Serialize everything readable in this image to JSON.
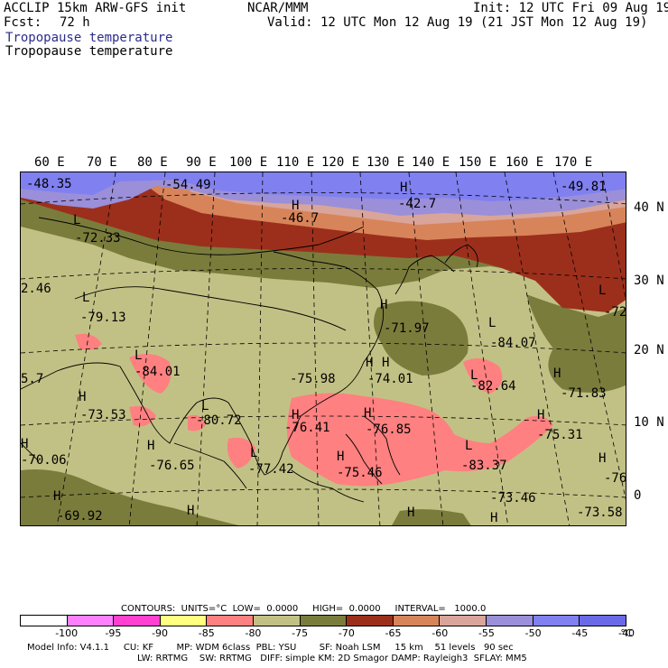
{
  "header": {
    "model": "ACCLIP 15km ARW-GFS init",
    "center": "NCAR/MMM",
    "init": "Init: 12 UTC Fri 09 Aug 19",
    "fcst_label": "Fcst:",
    "fcst_value": "72 h",
    "valid": "Valid: 12 UTC Mon 12 Aug 19 (21 JST Mon 12 Aug 19)",
    "field_title_1": "Tropopause temperature",
    "field_title_2": "Tropopause temperature"
  },
  "map": {
    "projection": "lambert-conformal",
    "longitude_labels": [
      "60 E",
      "70 E",
      "80 E",
      "90 E",
      "100 E",
      "110 E",
      "120 E",
      "130 E",
      "140 E",
      "150 E",
      "160 E",
      "170 E"
    ],
    "latitude_labels": [
      "40 N",
      "30 N",
      "20 N",
      "10 N",
      "0"
    ],
    "field_labels": [
      {
        "text": "-48.35"
      },
      {
        "text": "-54.49"
      },
      {
        "text": "H"
      },
      {
        "text": "-42.7"
      },
      {
        "text": "H"
      },
      {
        "text": "-46.7"
      },
      {
        "text": "-49.81"
      },
      {
        "text": "L"
      },
      {
        "text": "-72.33"
      },
      {
        "text": "2.46"
      },
      {
        "text": "L"
      },
      {
        "text": "-79.13"
      },
      {
        "text": "H"
      },
      {
        "text": "-71.97"
      },
      {
        "text": "L"
      },
      {
        "text": "-84.07"
      },
      {
        "text": "L"
      },
      {
        "text": "-72."
      },
      {
        "text": "L"
      },
      {
        "text": "-84.01"
      },
      {
        "text": "H"
      },
      {
        "text": "-75.98"
      },
      {
        "text": "H"
      },
      {
        "text": "-74.01"
      },
      {
        "text": "L"
      },
      {
        "text": "-82.64"
      },
      {
        "text": "H"
      },
      {
        "text": "-71.83"
      },
      {
        "text": "5.7"
      },
      {
        "text": "H"
      },
      {
        "text": "-73.53"
      },
      {
        "text": "L"
      },
      {
        "text": "-80.72"
      },
      {
        "text": "H"
      },
      {
        "text": "-76.41"
      },
      {
        "text": "H"
      },
      {
        "text": "-76.85"
      },
      {
        "text": "H"
      },
      {
        "text": "-75.31"
      },
      {
        "text": "H"
      },
      {
        "text": "-70.06"
      },
      {
        "text": "H"
      },
      {
        "text": "-76.65"
      },
      {
        "text": "L"
      },
      {
        "text": "-77.42"
      },
      {
        "text": "H"
      },
      {
        "text": "-75.46"
      },
      {
        "text": "L"
      },
      {
        "text": "-83.37"
      },
      {
        "text": "H"
      },
      {
        "text": "-76"
      },
      {
        "text": "H"
      },
      {
        "text": "-69.92"
      },
      {
        "text": "H"
      },
      {
        "text": "H"
      },
      {
        "text": "-73.46"
      },
      {
        "text": "H"
      },
      {
        "text": "-73.58"
      }
    ],
    "bands": [
      {
        "range": "< -80",
        "color": "#ff8080"
      },
      {
        "range": "-80 to -75",
        "color": "#c2c185"
      },
      {
        "range": "-75 to -70",
        "color": "#7a7c3c"
      },
      {
        "range": "-70 to -65",
        "color": "#9c2f1c"
      },
      {
        "range": "-65 to -60",
        "color": "#d8845a"
      },
      {
        "range": "-60 to -55",
        "color": "#d9a49a"
      },
      {
        "range": "-55 to -50",
        "color": "#9a8fd8"
      },
      {
        "range": "-50 to -45",
        "color": "#8080f0"
      }
    ]
  },
  "footer": {
    "contours": "CONTOURS:  UNITS=°C  LOW=  0.0000     HIGH=  0.0000     INTERVAL=   1000.0",
    "model_info_1": "Model Info: V4.1.1     CU: KF        MP: WDM 6class  PBL: YSU        SF: Noah LSM     15 km    51 levels   90 sec",
    "model_info_2": "LW: RRTMG    SW: RRTMG   DIFF: simple KM: 2D Smagor DAMP: Rayleigh3  SFLAY: MM5"
  },
  "legend": {
    "colors": [
      "#ffffff",
      "#ff80ff",
      "#ff40d0",
      "#ffff80",
      "#ff8080",
      "#c2c185",
      "#7a7c3c",
      "#9c2f1c",
      "#d8845a",
      "#d9a49a",
      "#9a8fd8",
      "#8080f0",
      "#6a6ae8"
    ],
    "ticks": [
      "-100",
      "-95",
      "-90",
      "-85",
      "-80",
      "-75",
      "-70",
      "-65",
      "-60",
      "-55",
      "-50",
      "-45",
      "-40",
      "°C"
    ]
  }
}
